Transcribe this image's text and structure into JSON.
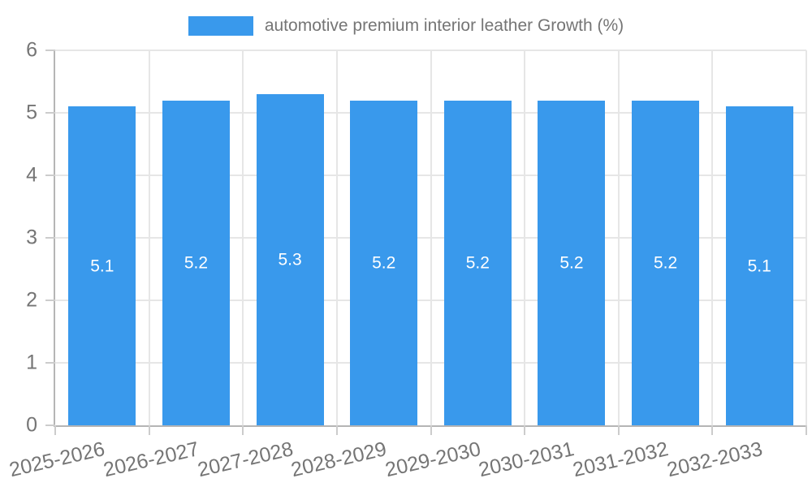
{
  "chart_data": {
    "type": "bar",
    "title": "",
    "legend": "automotive premium interior leather Growth (%)",
    "legend_position": "top",
    "categories": [
      "2025-2026",
      "2026-2027",
      "2027-2028",
      "2028-2029",
      "2029-2030",
      "2030-2031",
      "2031-2032",
      "2032-2033"
    ],
    "series": [
      {
        "name": "automotive premium interior leather Growth (%)",
        "values": [
          5.1,
          5.2,
          5.3,
          5.2,
          5.2,
          5.2,
          5.2,
          5.1
        ]
      }
    ],
    "bar_value_labels": [
      "5.1",
      "5.2",
      "5.3",
      "5.2",
      "5.2",
      "5.2",
      "5.2",
      "5.1"
    ],
    "xlabel": "",
    "ylabel": "",
    "ylim": [
      0,
      6
    ],
    "yticks": [
      0,
      1,
      2,
      3,
      4,
      5,
      6
    ],
    "grid": true,
    "colors": {
      "bar": "#3999ec",
      "grid": "#e6e6e6",
      "axis": "#b5b5b5",
      "tick": "#cccccc",
      "axis_text": "#757575",
      "bar_label_text": "#ffffff",
      "background": "#ffffff"
    }
  }
}
